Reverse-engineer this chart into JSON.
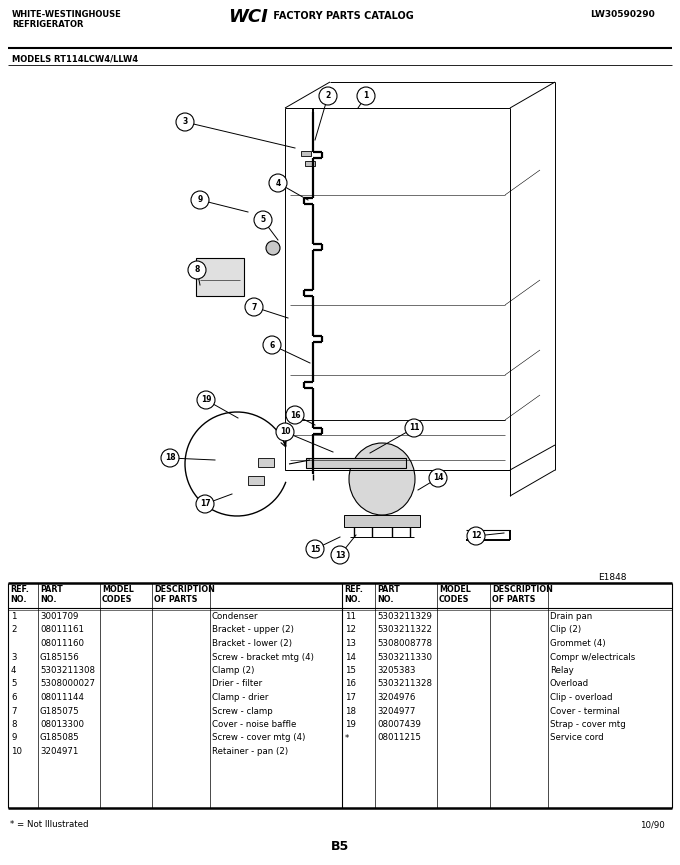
{
  "title_left": "WHITE-WESTINGHOUSE\nREFRIGERATOR",
  "title_center_wci": "WCI",
  "title_center_rest": " FACTORY PARTS CATALOG",
  "title_right": "LW30590290",
  "model_text": "MODELS RT114LCW4/LLW4",
  "diagram_label": "E1848",
  "page_label": "B5",
  "date_label": "10/90",
  "footnote": "* = Not Illustrated",
  "left_rows": [
    [
      "1",
      "3001709",
      "",
      "Condenser"
    ],
    [
      "2",
      "08011161",
      "",
      "Bracket - upper (2)"
    ],
    [
      "",
      "08011160",
      "",
      "Bracket - lower (2)"
    ],
    [
      "3",
      "G185156",
      "",
      "Screw - bracket mtg (4)"
    ],
    [
      "4",
      "5303211308",
      "",
      "Clamp (2)"
    ],
    [
      "5",
      "5308000027",
      "",
      "Drier - filter"
    ],
    [
      "6",
      "08011144",
      "",
      "Clamp - drier"
    ],
    [
      "7",
      "G185075",
      "",
      "Screw - clamp"
    ],
    [
      "8",
      "08013300",
      "",
      "Cover - noise baffle"
    ],
    [
      "9",
      "G185085",
      "",
      "Screw - cover mtg (4)"
    ],
    [
      "10",
      "3204971",
      "",
      "Retainer - pan (2)"
    ]
  ],
  "right_rows": [
    [
      "11",
      "5303211329",
      "",
      "Drain pan"
    ],
    [
      "12",
      "5303211322",
      "",
      "Clip (2)"
    ],
    [
      "13",
      "5308008778",
      "",
      "Grommet (4)"
    ],
    [
      "14",
      "5303211330",
      "",
      "Compr w/electricals"
    ],
    [
      "15",
      "3205383",
      "",
      "Relay"
    ],
    [
      "16",
      "5303211328",
      "",
      "Overload"
    ],
    [
      "17",
      "3204976",
      "",
      "Clip - overload"
    ],
    [
      "18",
      "3204977",
      "",
      "Cover - terminal"
    ],
    [
      "19",
      "08007439",
      "",
      "Strap - cover mtg"
    ],
    [
      "*",
      "08011215",
      "",
      "Service cord"
    ]
  ],
  "bg_color": "#ffffff"
}
